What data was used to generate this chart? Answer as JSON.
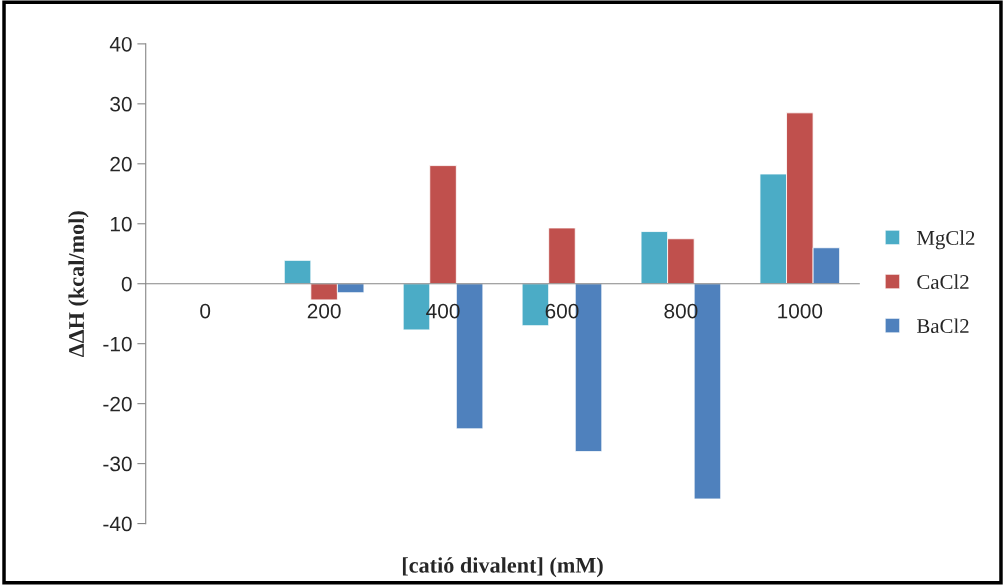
{
  "chart_data": {
    "type": "bar",
    "xlabel": "[catió divalent] (mM)",
    "ylabel": "ΔΔH (kcal/mol)",
    "categories": [
      "0",
      "200",
      "400",
      "600",
      "800",
      "1000"
    ],
    "series": [
      {
        "name": "MgCl2",
        "color": "#4bacc6",
        "values": [
          null,
          3.9,
          -7.7,
          -7.0,
          8.7,
          18.3
        ]
      },
      {
        "name": "CaCl2",
        "color": "#c0504d",
        "values": [
          null,
          -2.7,
          19.7,
          9.3,
          7.5,
          28.5
        ]
      },
      {
        "name": "BaCl2",
        "color": "#4f81bd",
        "values": [
          null,
          -1.5,
          -24.2,
          -28.0,
          -35.9,
          6.0
        ]
      }
    ],
    "ylim": [
      -40,
      40
    ],
    "yticks": [
      -40,
      -30,
      -20,
      -10,
      0,
      10,
      20,
      30,
      40
    ],
    "grid": false,
    "legend": "right"
  }
}
